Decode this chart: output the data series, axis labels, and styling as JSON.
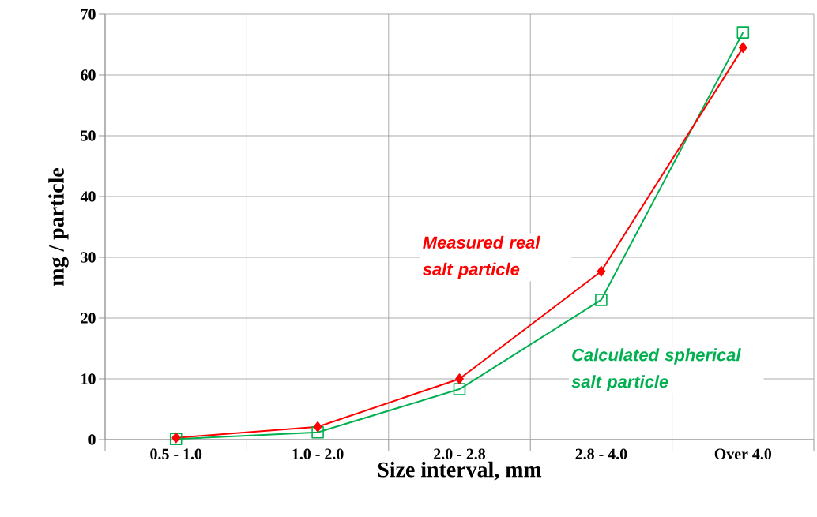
{
  "chart_data": {
    "type": "line",
    "xlabel": "Size interval, mm",
    "ylabel": "mg / particle",
    "categories": [
      "0.5 - 1.0",
      "1.0 - 2.0",
      "2.0 - 2.8",
      "2.8 - 4.0",
      "Over 4.0"
    ],
    "series": [
      {
        "name": "Measured real salt particle",
        "color": "#ff0000",
        "marker": "diamond",
        "values": [
          0.3,
          2.1,
          10.0,
          27.7,
          64.5
        ]
      },
      {
        "name": "Calculated spherical salt particle",
        "color": "#00b050",
        "marker": "square",
        "values": [
          0.1,
          1.2,
          8.3,
          23.0,
          67.0
        ]
      }
    ],
    "ylim": [
      0,
      70
    ],
    "yticks": [
      0,
      10,
      20,
      30,
      40,
      50,
      60,
      70
    ],
    "grid": true,
    "line_style": "solid"
  }
}
